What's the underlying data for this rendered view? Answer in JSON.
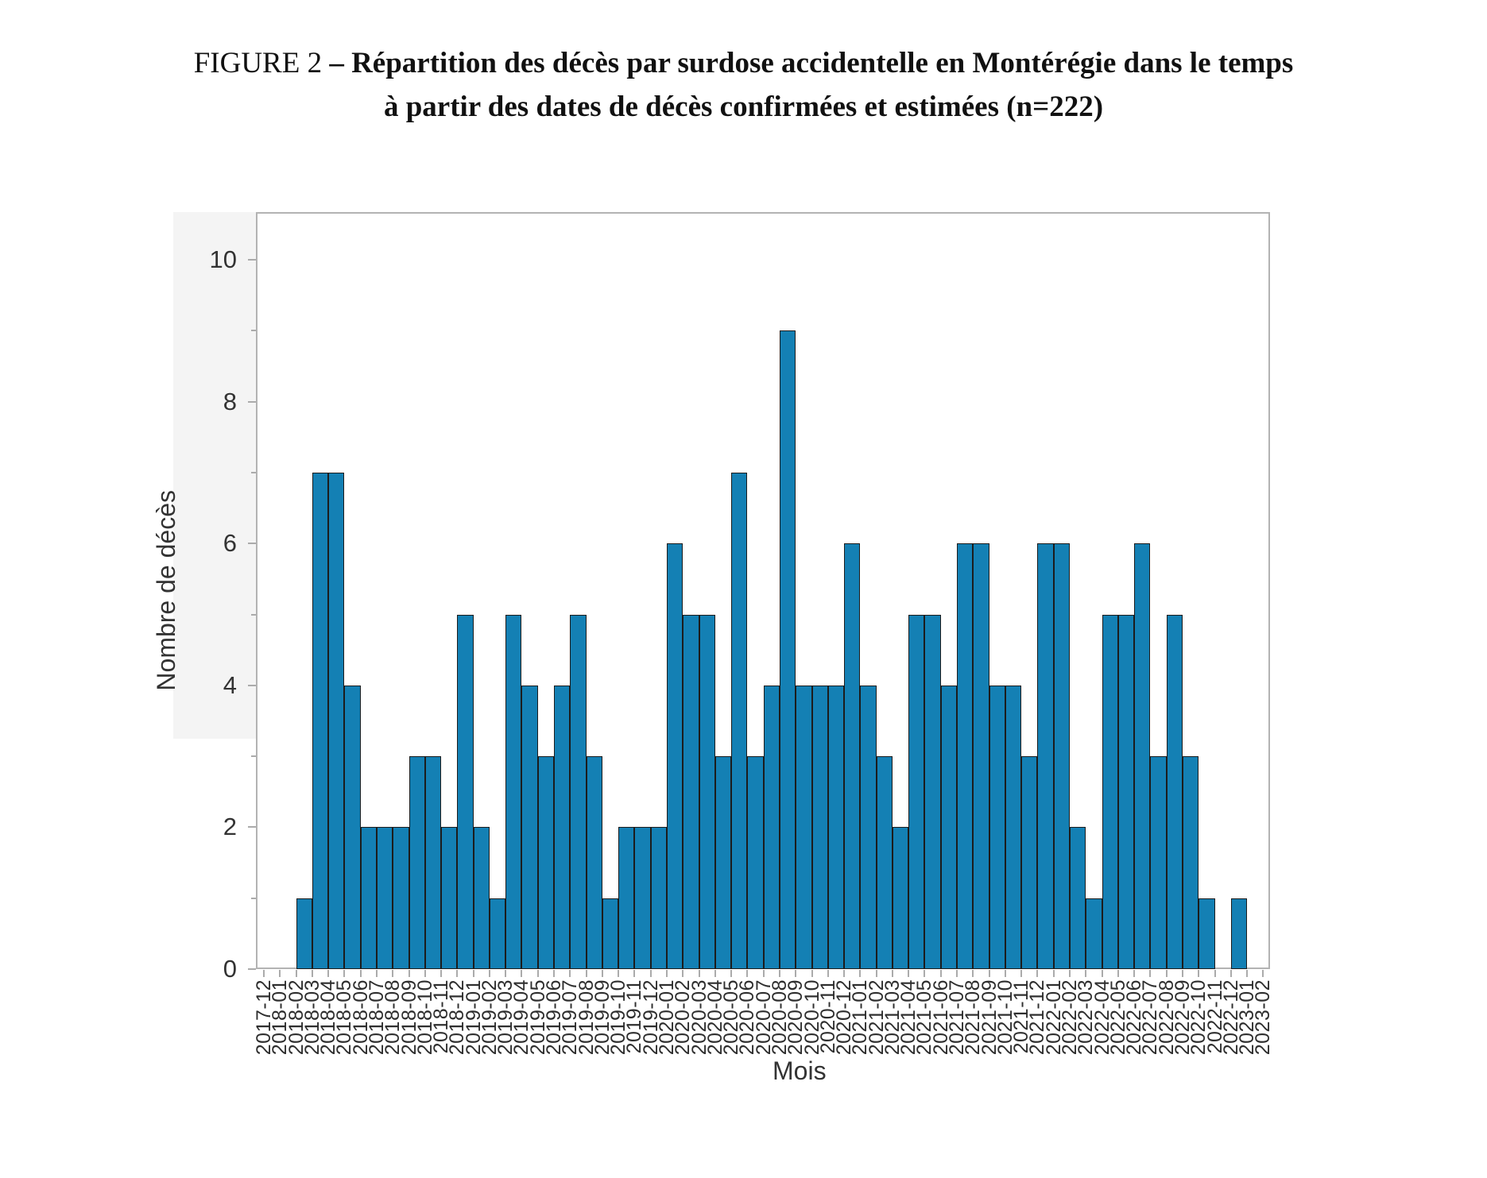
{
  "figure": {
    "title_prefix": "FIGURE 2 ",
    "title_line1_bold": "– Répartition des décès par surdose accidentelle en Montérégie dans le temps",
    "title_line2_bold": "à partir des dates de décès confirmées et estimées (n=222)",
    "total_n": "222"
  },
  "chart_data": {
    "type": "bar",
    "title": "FIGURE 2 – Répartition des décès par surdose accidentelle en Montérégie dans le temps à partir des dates de décès confirmées et estimées (n=222)",
    "xlabel": "Mois",
    "ylabel": "Nombre de décès",
    "categories": [
      "2017-12",
      "2018-01",
      "2018-02",
      "2018-03",
      "2018-04",
      "2018-05",
      "2018-06",
      "2018-07",
      "2018-08",
      "2018-09",
      "2018-10",
      "2018-11",
      "2018-12",
      "2019-01",
      "2019-02",
      "2019-03",
      "2019-04",
      "2019-05",
      "2019-06",
      "2019-07",
      "2019-08",
      "2019-09",
      "2019-10",
      "2019-11",
      "2019-12",
      "2020-01",
      "2020-02",
      "2020-03",
      "2020-04",
      "2020-05",
      "2020-06",
      "2020-07",
      "2020-08",
      "2020-09",
      "2020-10",
      "2020-11",
      "2020-12",
      "2021-01",
      "2021-02",
      "2021-03",
      "2021-04",
      "2021-05",
      "2021-06",
      "2021-07",
      "2021-08",
      "2021-09",
      "2021-10",
      "2021-11",
      "2021-12",
      "2022-01",
      "2022-02",
      "2022-03",
      "2022-04",
      "2022-05",
      "2022-06",
      "2022-07",
      "2022-08",
      "2022-09",
      "2022-10",
      "2022-11",
      "2022-12",
      "2023-01",
      "2023-02"
    ],
    "values": [
      0,
      0,
      1,
      7,
      7,
      4,
      2,
      2,
      2,
      3,
      3,
      2,
      5,
      2,
      1,
      5,
      4,
      3,
      4,
      5,
      3,
      1,
      2,
      2,
      2,
      6,
      5,
      5,
      3,
      7,
      3,
      4,
      9,
      4,
      4,
      4,
      6,
      4,
      3,
      2,
      5,
      5,
      4,
      6,
      6,
      4,
      4,
      3,
      6,
      6,
      2,
      1,
      5,
      5,
      6,
      3,
      5,
      3,
      1,
      0,
      1,
      0,
      0
    ],
    "ylim": [
      0,
      10.67
    ],
    "yticks_major": [
      0,
      2,
      4,
      6,
      8,
      10
    ],
    "yticks_minor": [
      1,
      3,
      5,
      7,
      9
    ],
    "grid": "off",
    "legend": "none",
    "bar_color": "#1480b4",
    "bar_edge_color": "#1c1c1c",
    "axis_color": "#b3b3b3",
    "panel_color": "#f4f4f4"
  }
}
